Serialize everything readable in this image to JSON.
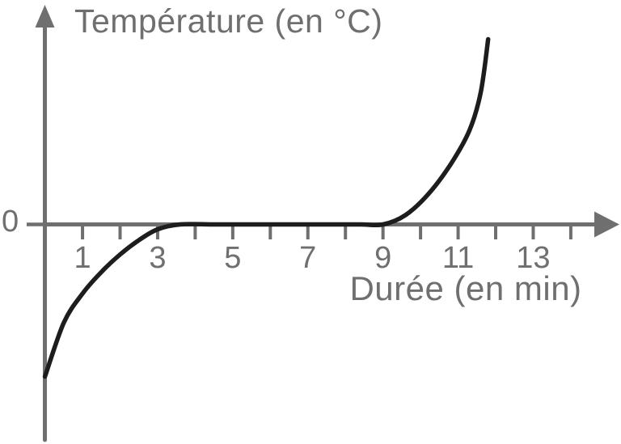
{
  "colors": {
    "axis": "#6f6f6f",
    "text": "#6f6f6f",
    "curve": "#1d1d1b",
    "background": "#ffffff"
  },
  "chart_data": {
    "type": "line",
    "title": "",
    "ylabel": "Température (en °C)",
    "xlabel": "Durée (en min)",
    "x_unit": "min",
    "y_unit": "°C",
    "xlim": [
      0,
      15.3
    ],
    "ylim": [
      -5.8,
      5.9
    ],
    "grid": false,
    "legend": "none",
    "x_ticks": [
      1,
      2,
      3,
      4,
      5,
      6,
      7,
      8,
      9,
      10,
      11,
      12,
      13,
      14
    ],
    "x_tick_labels": [
      {
        "value": 1,
        "label": "1"
      },
      {
        "value": 3,
        "label": "3"
      },
      {
        "value": 5,
        "label": "5"
      },
      {
        "value": 7,
        "label": "7"
      },
      {
        "value": 9,
        "label": "9"
      },
      {
        "value": 11,
        "label": "11"
      },
      {
        "value": 13,
        "label": "13"
      }
    ],
    "y_ticks": [
      {
        "value": 0,
        "label": "0"
      }
    ],
    "series": [
      {
        "name": "température",
        "points": [
          [
            0,
            -4.05
          ],
          [
            0.5,
            -2.62
          ],
          [
            1,
            -1.84
          ],
          [
            1.5,
            -1.27
          ],
          [
            2,
            -0.8
          ],
          [
            2.5,
            -0.42
          ],
          [
            3,
            -0.13
          ],
          [
            3.6,
            0
          ],
          [
            4.5,
            0
          ],
          [
            5.5,
            0
          ],
          [
            6.5,
            0
          ],
          [
            7.5,
            0
          ],
          [
            8.4,
            0
          ],
          [
            9,
            0
          ],
          [
            9.6,
            0.25
          ],
          [
            10.2,
            0.8
          ],
          [
            10.8,
            1.6
          ],
          [
            11.3,
            2.5
          ],
          [
            11.6,
            3.5
          ],
          [
            11.8,
            4.93
          ]
        ]
      }
    ],
    "description": "Temperature starts below 0 °C, rises and plateaus at 0 °C between about 3.5 and 9 min, then rises steeply after 9 min."
  }
}
